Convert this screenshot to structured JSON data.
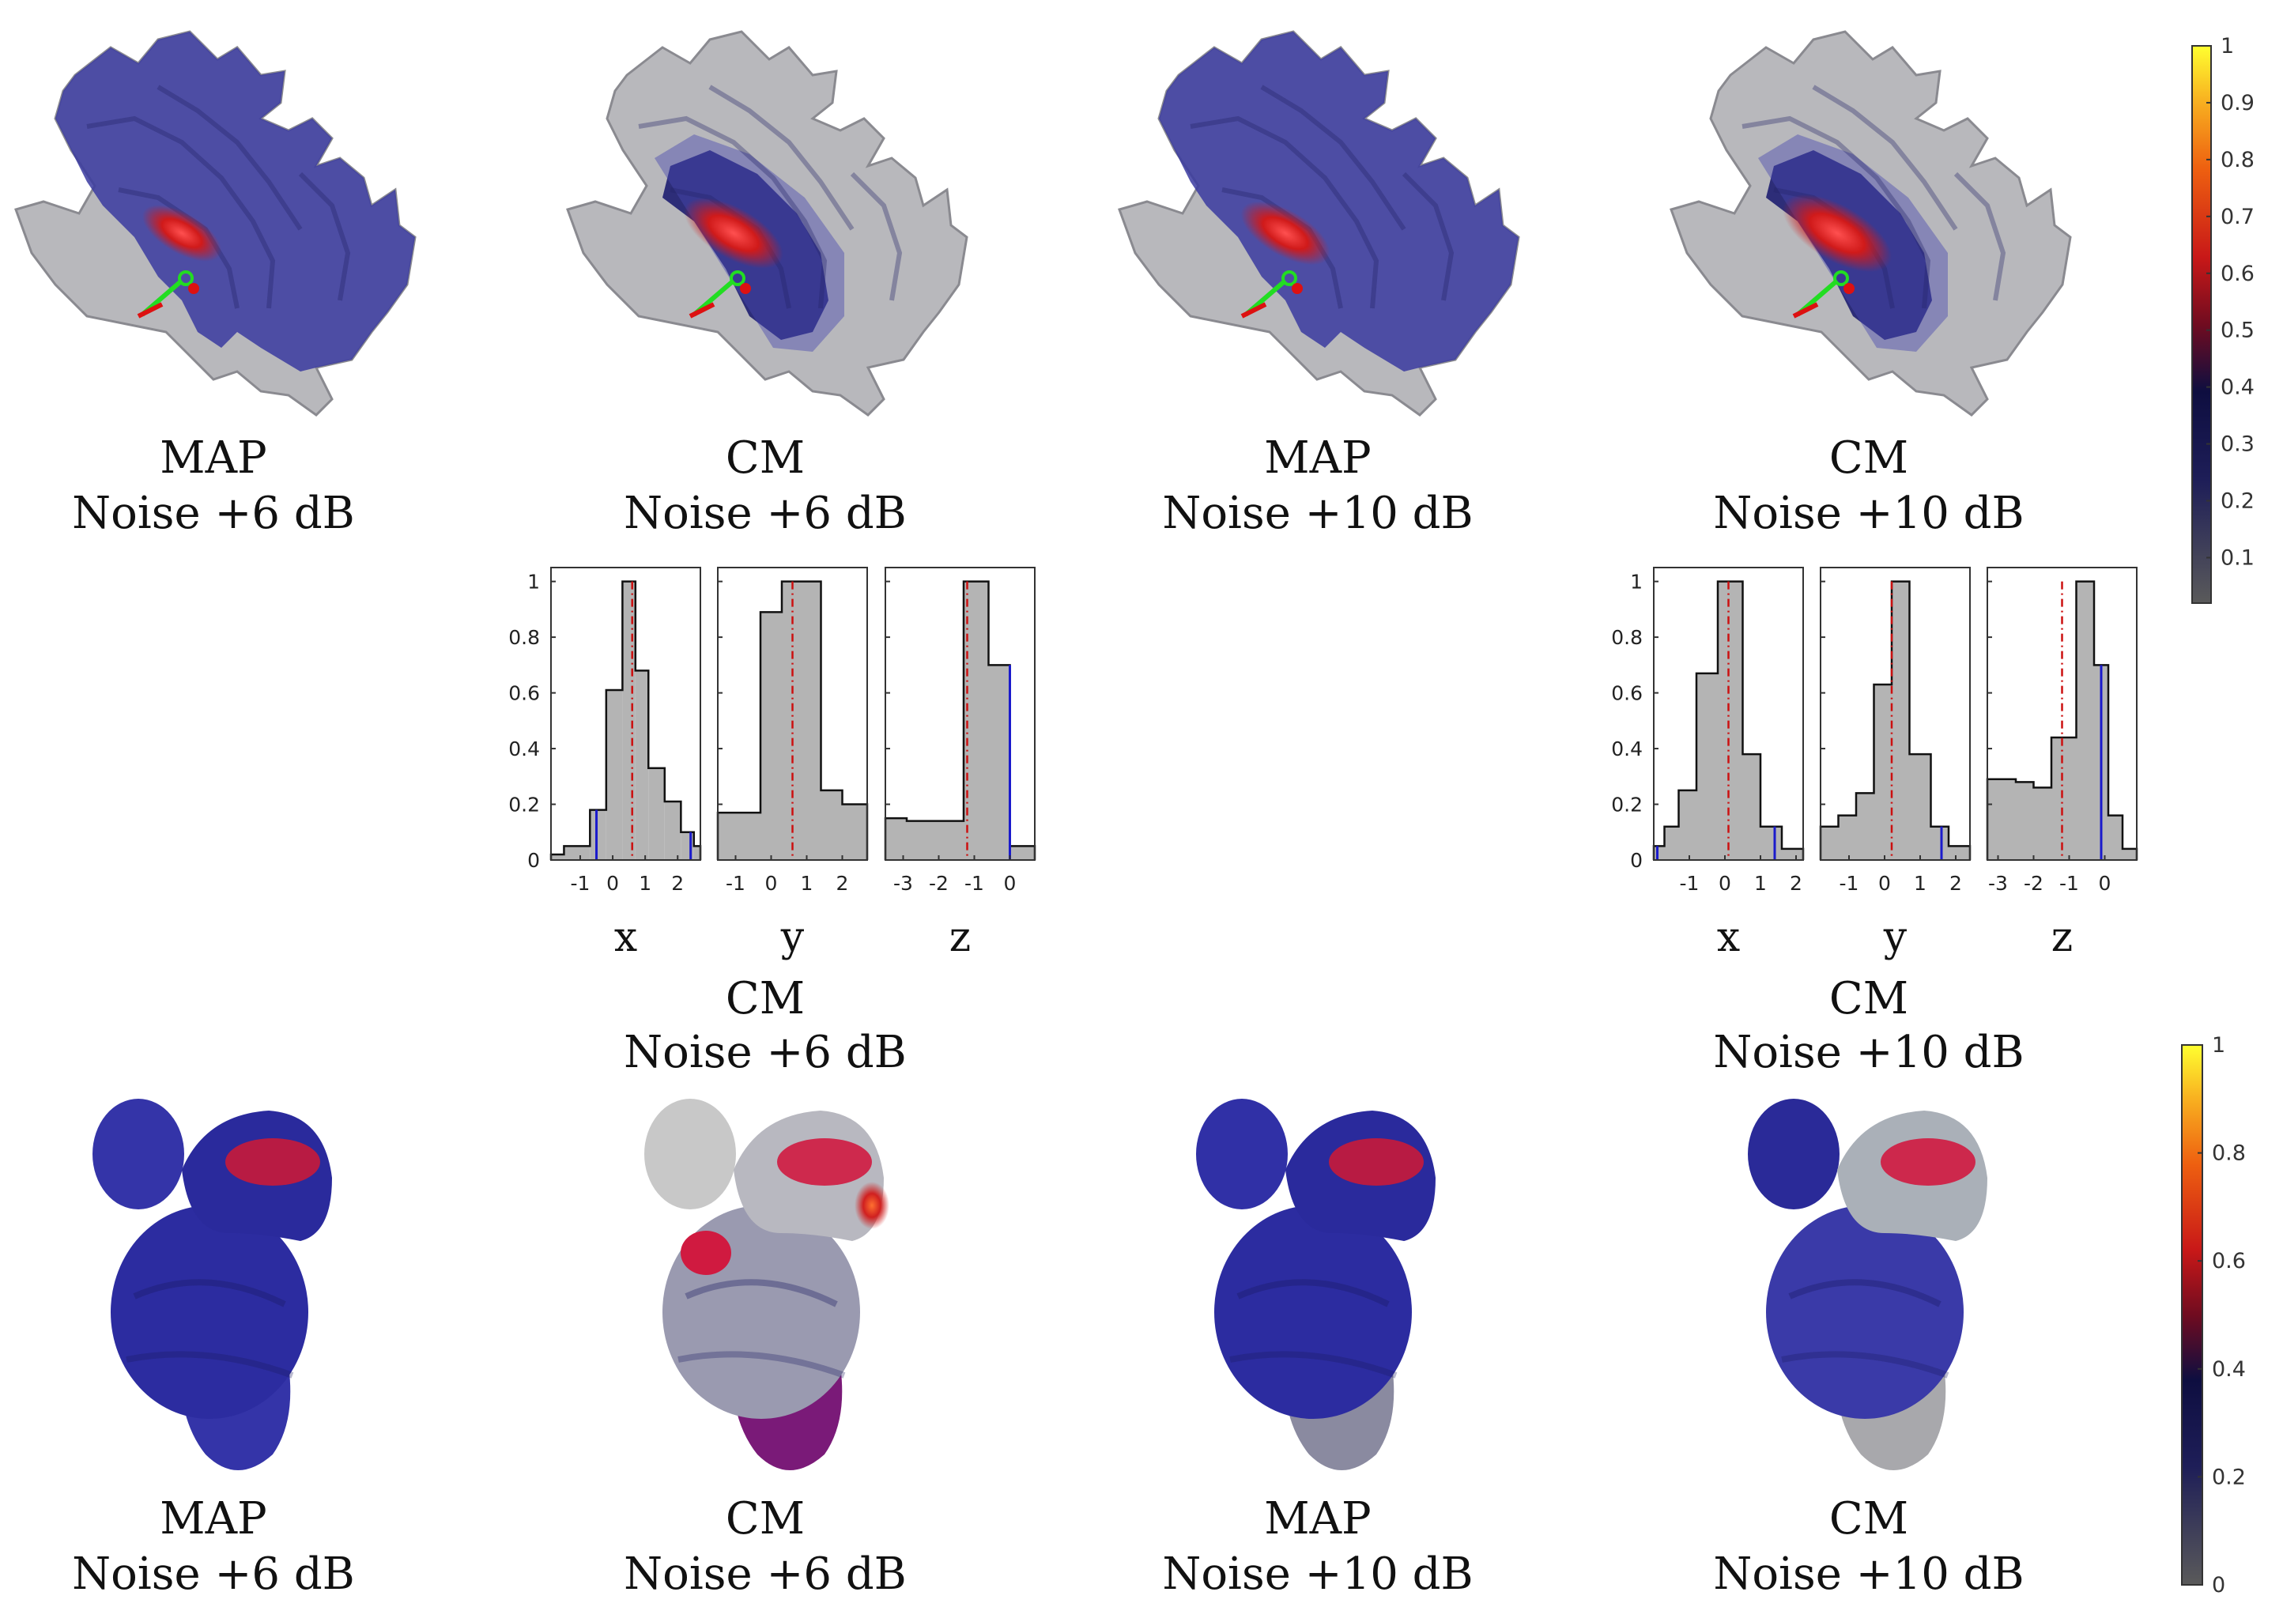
{
  "top_row": {
    "captions": [
      {
        "method": "MAP",
        "noise": "Noise +6 dB"
      },
      {
        "method": "CM",
        "noise": "Noise +6 dB"
      },
      {
        "method": "MAP",
        "noise": "Noise +10 dB"
      },
      {
        "method": "CM",
        "noise": "Noise +10 dB"
      }
    ]
  },
  "histogram_groups": [
    {
      "method": "CM",
      "noise": "Noise +6 dB"
    },
    {
      "method": "CM",
      "noise": "Noise +10 dB"
    }
  ],
  "bottom_row": {
    "captions": [
      {
        "method": "MAP",
        "noise": "Noise +6 dB"
      },
      {
        "method": "CM",
        "noise": "Noise +6 dB"
      },
      {
        "method": "MAP",
        "noise": "Noise +10 dB"
      },
      {
        "method": "CM",
        "noise": "Noise +10 dB"
      }
    ]
  },
  "colorbars": [
    {
      "ticks": [
        "1",
        "0.9",
        "0.8",
        "0.7",
        "0.6",
        "0.5",
        "0.4",
        "0.3",
        "0.2",
        "0.1"
      ]
    },
    {
      "ticks": [
        "1",
        "0.8",
        "0.6",
        "0.4",
        "0.2",
        "0"
      ]
    }
  ],
  "colors": {
    "low": "#5a5a5a",
    "mid": "#14145a",
    "high": "#d41e1e",
    "max": "#ffff33",
    "hist_fill": "#b4b4b4",
    "marker_red": "#cc1010",
    "marker_blue": "#1a1acc"
  },
  "chart_data": [
    {
      "type": "bar",
      "group": 0,
      "xlabel": "x",
      "xlim": [
        -1.9,
        2.7
      ],
      "ylim": [
        0,
        1.05
      ],
      "xticks": [
        "-1",
        "0",
        "1",
        "2"
      ],
      "yticks": [
        "0",
        "0.2",
        "0.4",
        "0.6",
        "0.8",
        "1"
      ],
      "bins": [
        [
          -1.9,
          -1.5,
          0.02
        ],
        [
          -1.5,
          -0.7,
          0.05
        ],
        [
          -0.7,
          -0.2,
          0.18
        ],
        [
          -0.2,
          0.3,
          0.61
        ],
        [
          0.3,
          0.7,
          1.0
        ],
        [
          0.7,
          1.1,
          0.68
        ],
        [
          1.1,
          1.6,
          0.33
        ],
        [
          1.6,
          2.1,
          0.21
        ],
        [
          2.1,
          2.5,
          0.1
        ],
        [
          2.5,
          2.7,
          0.05
        ]
      ],
      "red_line": 0.6,
      "blue_lines": [
        -0.5,
        2.4
      ]
    },
    {
      "type": "bar",
      "group": 0,
      "xlabel": "y",
      "xlim": [
        -1.5,
        2.7
      ],
      "ylim": [
        0,
        1.05
      ],
      "xticks": [
        "-1",
        "0",
        "1",
        "2"
      ],
      "yticks": [
        "0",
        "0.2",
        "0.4",
        "0.6",
        "0.8",
        "1"
      ],
      "bins": [
        [
          -1.5,
          -0.9,
          0.17
        ],
        [
          -0.9,
          -0.3,
          0.17
        ],
        [
          -0.3,
          0.3,
          0.89
        ],
        [
          0.3,
          1.4,
          1.0
        ],
        [
          1.4,
          2.0,
          0.25
        ],
        [
          2.0,
          2.7,
          0.2
        ]
      ],
      "red_line": 0.6,
      "blue_lines": []
    },
    {
      "type": "bar",
      "group": 0,
      "xlabel": "z",
      "xlim": [
        -3.5,
        0.7
      ],
      "ylim": [
        0,
        1.05
      ],
      "xticks": [
        "-3",
        "-2",
        "-1",
        "0"
      ],
      "yticks": [
        "0",
        "0.2",
        "0.4",
        "0.6",
        "0.8",
        "1"
      ],
      "bins": [
        [
          -3.5,
          -2.9,
          0.15
        ],
        [
          -2.9,
          -1.3,
          0.14
        ],
        [
          -1.3,
          -0.6,
          1.0
        ],
        [
          -0.6,
          0.0,
          0.7
        ],
        [
          0.0,
          0.7,
          0.05
        ]
      ],
      "red_line": -1.2,
      "blue_lines": [
        0.0
      ]
    },
    {
      "type": "bar",
      "group": 1,
      "xlabel": "x",
      "xlim": [
        -2.0,
        2.2
      ],
      "ylim": [
        0,
        1.05
      ],
      "xticks": [
        "-1",
        "0",
        "1",
        "2"
      ],
      "yticks": [
        "0",
        "0.2",
        "0.4",
        "0.6",
        "0.8",
        "1"
      ],
      "bins": [
        [
          -2.0,
          -1.7,
          0.05
        ],
        [
          -1.7,
          -1.3,
          0.12
        ],
        [
          -1.3,
          -0.8,
          0.25
        ],
        [
          -0.8,
          -0.2,
          0.67
        ],
        [
          -0.2,
          0.5,
          1.0
        ],
        [
          0.5,
          1.0,
          0.38
        ],
        [
          1.0,
          1.6,
          0.12
        ],
        [
          1.6,
          2.2,
          0.04
        ]
      ],
      "red_line": 0.1,
      "blue_lines": [
        -1.9,
        1.4
      ]
    },
    {
      "type": "bar",
      "group": 1,
      "xlabel": "y",
      "xlim": [
        -1.8,
        2.4
      ],
      "ylim": [
        0,
        1.05
      ],
      "xticks": [
        "-1",
        "0",
        "1",
        "2"
      ],
      "yticks": [
        "0",
        "0.2",
        "0.4",
        "0.6",
        "0.8",
        "1"
      ],
      "bins": [
        [
          -1.8,
          -1.3,
          0.12
        ],
        [
          -1.3,
          -0.8,
          0.16
        ],
        [
          -0.8,
          -0.3,
          0.24
        ],
        [
          -0.3,
          0.2,
          0.63
        ],
        [
          0.2,
          0.7,
          1.0
        ],
        [
          0.7,
          1.3,
          0.38
        ],
        [
          1.3,
          1.8,
          0.12
        ],
        [
          1.8,
          2.4,
          0.05
        ]
      ],
      "red_line": 0.2,
      "blue_lines": [
        1.6
      ]
    },
    {
      "type": "bar",
      "group": 1,
      "xlabel": "z",
      "xlim": [
        -3.3,
        0.9
      ],
      "ylim": [
        0,
        1.05
      ],
      "xticks": [
        "-3",
        "-2",
        "-1",
        "0"
      ],
      "yticks": [
        "0",
        "0.2",
        "0.4",
        "0.6",
        "0.8",
        "1"
      ],
      "bins": [
        [
          -3.3,
          -2.5,
          0.29
        ],
        [
          -2.5,
          -2.0,
          0.28
        ],
        [
          -2.0,
          -1.5,
          0.26
        ],
        [
          -1.5,
          -0.8,
          0.44
        ],
        [
          -0.8,
          -0.3,
          1.0
        ],
        [
          -0.3,
          0.1,
          0.7
        ],
        [
          0.1,
          0.5,
          0.16
        ],
        [
          0.5,
          0.9,
          0.04
        ]
      ],
      "red_line": -1.2,
      "blue_lines": [
        -0.1
      ]
    }
  ]
}
